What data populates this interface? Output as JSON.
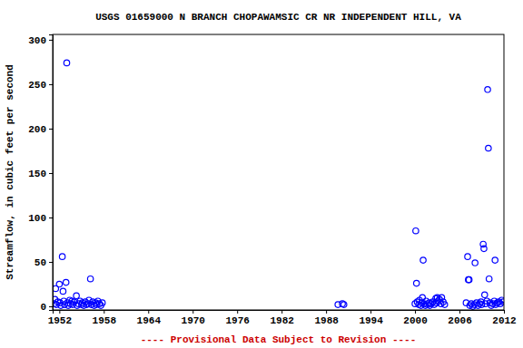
{
  "chart_data": {
    "type": "scatter",
    "title": "USGS 01659000 N BRANCH CHOPAWAMSIC CR NR INDEPENDENT HILL, VA",
    "y_label": "Streamflow, in cubic feet per second",
    "annotations": [
      "---- Provisional Data Subject to Revision ----"
    ],
    "color": "#0000ff",
    "marker": "circle",
    "grid": false,
    "xlim": [
      1951.1,
      2012.0
    ],
    "xticks": [
      1952,
      1958,
      1964,
      1970,
      1976,
      1982,
      1988,
      1994,
      2000,
      2006,
      2012
    ],
    "ylim": [
      -4,
      306
    ],
    "yticks": [
      0,
      50,
      100,
      150,
      200,
      250,
      300
    ],
    "x": [
      1951.3,
      1951.4,
      1951.5,
      1951.6,
      1951.8,
      1952.0,
      1952.1,
      1952.2,
      1952.4,
      1952.5,
      1952.6,
      1952.7,
      1952.9,
      1953.0,
      1953.1,
      1953.2,
      1953.4,
      1953.5,
      1953.7,
      1953.8,
      1954.0,
      1954.3,
      1954.4,
      1954.6,
      1954.8,
      1955.0,
      1955.1,
      1955.3,
      1955.5,
      1955.7,
      1955.9,
      1956.0,
      1956.2,
      1956.3,
      1956.5,
      1956.7,
      1956.9,
      1957.0,
      1957.2,
      1957.4,
      1957.6,
      1957.8,
      1989.6,
      1990.2,
      1990.4,
      2000.0,
      2000.1,
      2000.2,
      2000.3,
      2000.5,
      2000.6,
      2000.8,
      2000.9,
      2001.0,
      2001.1,
      2001.2,
      2001.4,
      2001.5,
      2001.7,
      2001.9,
      2002.0,
      2002.2,
      2002.4,
      2002.6,
      2002.8,
      2002.9,
      2003.0,
      2003.1,
      2003.3,
      2003.5,
      2003.6,
      2003.8,
      2004.0,
      2006.9,
      2007.1,
      2007.2,
      2007.3,
      2007.4,
      2007.6,
      2007.8,
      2008.0,
      2008.1,
      2008.3,
      2008.5,
      2008.7,
      2008.9,
      2009.0,
      2009.2,
      2009.3,
      2009.4,
      2009.5,
      2009.7,
      2009.8,
      2009.9,
      2010.0,
      2010.1,
      2010.3,
      2010.5,
      2010.7,
      2010.8,
      2010.9,
      2011.1,
      2011.3,
      2011.5,
      2011.7,
      2011.9
    ],
    "values": [
      3,
      8,
      20,
      2,
      5,
      25,
      4,
      1,
      56,
      17,
      6,
      2,
      27,
      274,
      4,
      1,
      7,
      3,
      6,
      2,
      5,
      12,
      1,
      3,
      6,
      2,
      4,
      1,
      5,
      2,
      3,
      7,
      31,
      2,
      5,
      1,
      4,
      2,
      6,
      3,
      1,
      4,
      2,
      3,
      2,
      3,
      85,
      26,
      5,
      2,
      7,
      1,
      4,
      10,
      52,
      3,
      1,
      6,
      2,
      4,
      1,
      3,
      5,
      2,
      9,
      4,
      10,
      6,
      8,
      3,
      10,
      5,
      2,
      4,
      56,
      30,
      30,
      1,
      3,
      0,
      2,
      49,
      4,
      1,
      3,
      5,
      2,
      70,
      65,
      13,
      3,
      6,
      244,
      178,
      31,
      4,
      1,
      3,
      6,
      52,
      2,
      4,
      5,
      3,
      7,
      5
    ]
  }
}
